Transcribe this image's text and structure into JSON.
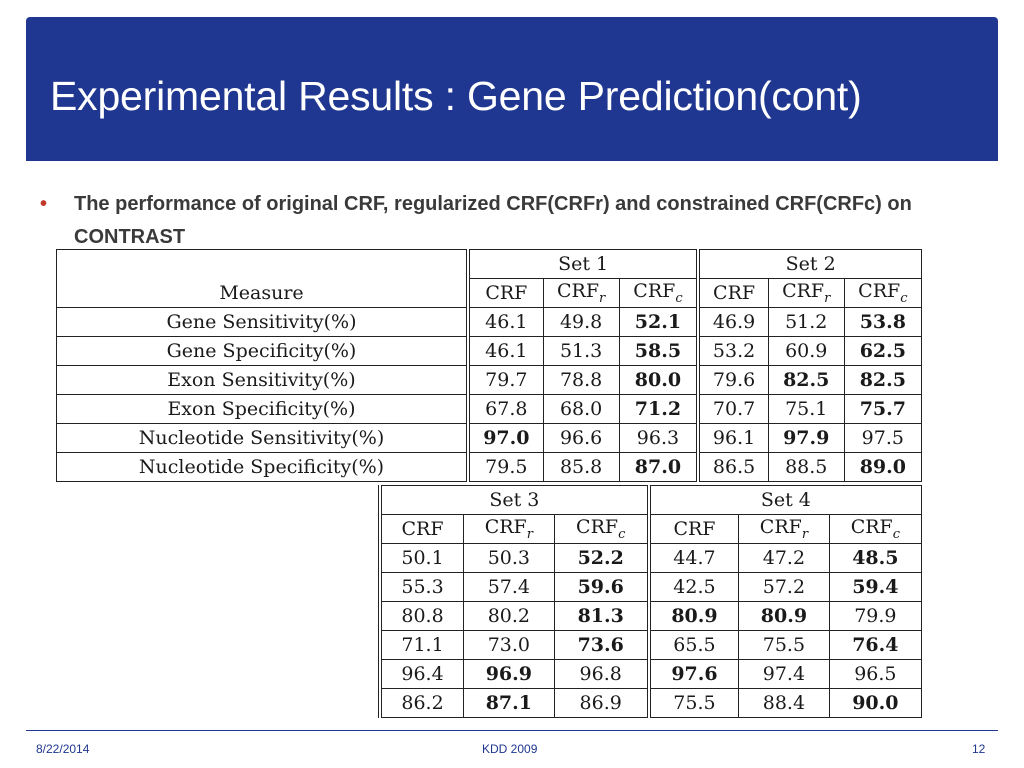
{
  "slide": {
    "title": "Experimental Results : Gene Prediction(cont)",
    "bullet": "The performance of original CRF, regularized CRF(CRFr) and constrained CRF(CRFc)  on  CONTRAST",
    "bullet_marker": "•"
  },
  "table": {
    "measure_header": "Measure",
    "col_crf": "CRF",
    "col_crfr_base": "CRF",
    "col_crfr_sub": "r",
    "col_crfc_base": "CRF",
    "col_crfc_sub": "c",
    "measures": [
      "Gene Sensitivity(%)",
      "Gene Specificity(%)",
      "Exon Sensitivity(%)",
      "Exon Specificity(%)",
      "Nucleotide Sensitivity(%)",
      "Nucleotide Specificity(%)"
    ],
    "sets": [
      {
        "name": "Set 1",
        "rows": [
          {
            "crf": "46.1",
            "crfr": "49.8",
            "crfc": "52.1"
          },
          {
            "crf": "46.1",
            "crfr": "51.3",
            "crfc": "58.5"
          },
          {
            "crf": "79.7",
            "crfr": "78.8",
            "crfc": "80.0"
          },
          {
            "crf": "67.8",
            "crfr": "68.0",
            "crfc": "71.2"
          },
          {
            "crf": "97.0",
            "crfr": "96.6",
            "crfc": "96.3"
          },
          {
            "crf": "79.5",
            "crfr": "85.8",
            "crfc": "87.0"
          }
        ]
      },
      {
        "name": "Set 2",
        "rows": [
          {
            "crf": "46.9",
            "crfr": "51.2",
            "crfc": "53.8"
          },
          {
            "crf": "53.2",
            "crfr": "60.9",
            "crfc": "62.5"
          },
          {
            "crf": "79.6",
            "crfr": "82.5",
            "crfc": "82.5"
          },
          {
            "crf": "70.7",
            "crfr": "75.1",
            "crfc": "75.7"
          },
          {
            "crf": "96.1",
            "crfr": "97.9",
            "crfc": "97.5"
          },
          {
            "crf": "86.5",
            "crfr": "88.5",
            "crfc": "89.0"
          }
        ]
      },
      {
        "name": "Set 3",
        "rows": [
          {
            "crf": "50.1",
            "crfr": "50.3",
            "crfc": "52.2"
          },
          {
            "crf": "55.3",
            "crfr": "57.4",
            "crfc": "59.6"
          },
          {
            "crf": "80.8",
            "crfr": "80.2",
            "crfc": "81.3"
          },
          {
            "crf": "71.1",
            "crfr": "73.0",
            "crfc": "73.6"
          },
          {
            "crf": "96.4",
            "crfr": "96.9",
            "crfc": "96.8"
          },
          {
            "crf": "86.2",
            "crfr": "87.1",
            "crfc": "86.9"
          }
        ]
      },
      {
        "name": "Set 4",
        "rows": [
          {
            "crf": "44.7",
            "crfr": "47.2",
            "crfc": "48.5"
          },
          {
            "crf": "42.5",
            "crfr": "57.2",
            "crfc": "59.4"
          },
          {
            "crf": "80.9",
            "crfr": "80.9",
            "crfc": "79.9"
          },
          {
            "crf": "65.5",
            "crfr": "75.5",
            "crfc": "76.4"
          },
          {
            "crf": "97.6",
            "crfr": "97.4",
            "crfc": "96.5"
          },
          {
            "crf": "75.5",
            "crfr": "88.4",
            "crfc": "90.0"
          }
        ]
      }
    ],
    "bold_cells": [
      "0.0.crfc",
      "0.1.crfc",
      "0.2.crfc",
      "0.3.crfc",
      "0.4.crf",
      "0.5.crfc",
      "1.0.crfc",
      "1.1.crfc",
      "1.2.crfr",
      "1.2.crfc",
      "1.3.crfc",
      "1.4.crfr",
      "1.5.crfc",
      "2.0.crfc",
      "2.1.crfc",
      "2.2.crfc",
      "2.3.crfc",
      "2.4.crfr",
      "2.5.crfr",
      "3.0.crfc",
      "3.1.crfc",
      "3.2.crf",
      "3.2.crfr",
      "3.3.crfc",
      "3.4.crf",
      "3.5.crfc"
    ]
  },
  "footer": {
    "date": "8/22/2014",
    "center": "KDD 2009",
    "page": "12"
  },
  "colors": {
    "title_bar": "#1f3790",
    "bullet_marker": "#c0392b",
    "footer_text": "#1f3790"
  }
}
